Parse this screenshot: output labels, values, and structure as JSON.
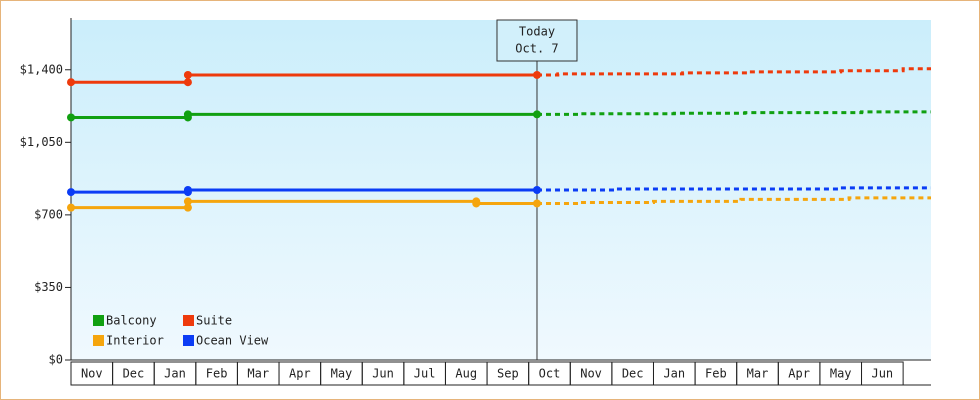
{
  "chart_data": {
    "type": "line",
    "categories": [
      "Nov",
      "Dec",
      "Jan",
      "Feb",
      "Mar",
      "Apr",
      "May",
      "Jun",
      "Jul",
      "Aug",
      "Sep",
      "Oct",
      "Nov",
      "Dec",
      "Jan",
      "Feb",
      "Mar",
      "Apr",
      "May",
      "Jun"
    ],
    "xlim": [
      0,
      20.67
    ],
    "ylim": [
      0,
      1640
    ],
    "yticks": [
      {
        "value": 0,
        "label": "$0"
      },
      {
        "value": 350,
        "label": "$350"
      },
      {
        "value": 700,
        "label": "$700"
      },
      {
        "value": 1050,
        "label": "$1,050"
      },
      {
        "value": 1400,
        "label": "$1,400"
      }
    ],
    "today": {
      "x": 11.2,
      "label": [
        "Today",
        "Oct. 7"
      ]
    },
    "series": [
      {
        "name": "Balcony",
        "color": "#11a011",
        "x": [
          0,
          2.81,
          2.81,
          11.2
        ],
        "values": [
          1170,
          1170,
          1185,
          1185
        ],
        "forecast_x": [
          11.2,
          12.2,
          12.2,
          14.5,
          14.5,
          16.2,
          16.2,
          19.0,
          19.0,
          20.67
        ],
        "forecast_values": [
          1185,
          1185,
          1188,
          1188,
          1190,
          1190,
          1193,
          1193,
          1197,
          1197
        ]
      },
      {
        "name": "Suite",
        "color": "#ee3a0c",
        "x": [
          0,
          2.81,
          2.81,
          11.2
        ],
        "values": [
          1340,
          1340,
          1375,
          1375
        ],
        "forecast_x": [
          11.2,
          11.7,
          11.7,
          14.7,
          14.7,
          16.3,
          16.3,
          18.5,
          18.5,
          20.0,
          20.0,
          20.67
        ],
        "forecast_values": [
          1375,
          1375,
          1380,
          1380,
          1385,
          1385,
          1390,
          1390,
          1395,
          1395,
          1405,
          1405
        ]
      },
      {
        "name": "Interior",
        "color": "#f5a50d",
        "x": [
          0,
          2.81,
          2.81,
          9.74,
          9.74,
          11.2
        ],
        "values": [
          735,
          735,
          765,
          765,
          755,
          755
        ],
        "forecast_x": [
          11.2,
          12.2,
          12.2,
          14.0,
          14.0,
          16.1,
          16.1,
          18.7,
          18.7,
          20.67
        ],
        "forecast_values": [
          755,
          755,
          760,
          760,
          765,
          765,
          775,
          775,
          782,
          782
        ]
      },
      {
        "name": "Ocean View",
        "color": "#0b3cf5",
        "x": [
          0,
          2.81,
          2.81,
          11.2
        ],
        "values": [
          810,
          810,
          820,
          820
        ],
        "forecast_x": [
          11.2,
          13.1,
          13.1,
          18.5,
          18.5,
          20.67
        ],
        "forecast_values": [
          820,
          820,
          825,
          825,
          830,
          830
        ]
      }
    ]
  }
}
